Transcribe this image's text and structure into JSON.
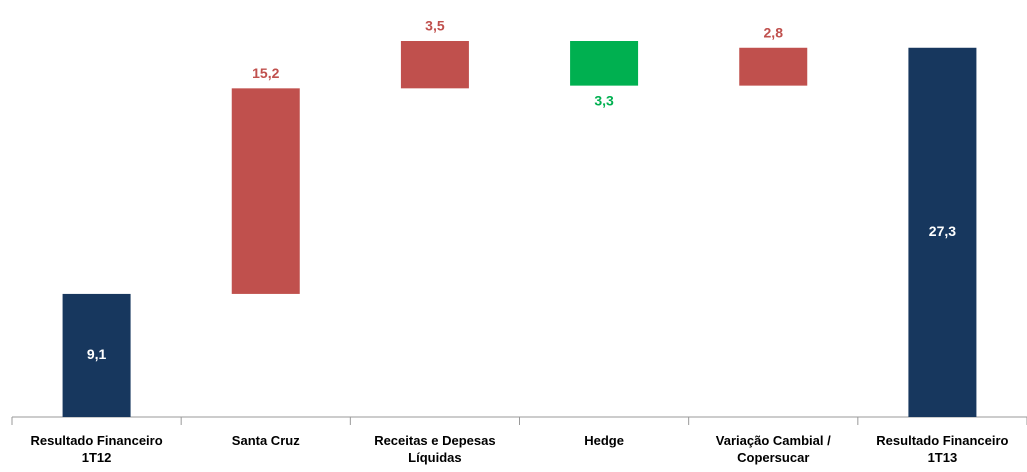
{
  "chart_data": {
    "type": "waterfall",
    "categories": [
      "Resultado Financeiro 1T12",
      "Santa Cruz",
      "Receitas e Depesas Líquidas",
      "Hedge",
      "Variação Cambial / Copersucar",
      "Resultado Financeiro 1T13"
    ],
    "values": [
      9.1,
      15.2,
      3.5,
      -3.3,
      2.8,
      27.3
    ],
    "value_labels": [
      "9,1",
      "15,2",
      "3,5",
      "3,3",
      "2,8",
      "27,3"
    ],
    "colors": [
      "#17375e",
      "#c0504d",
      "#c0504d",
      "#00b050",
      "#c0504d",
      "#17375e"
    ]
  }
}
